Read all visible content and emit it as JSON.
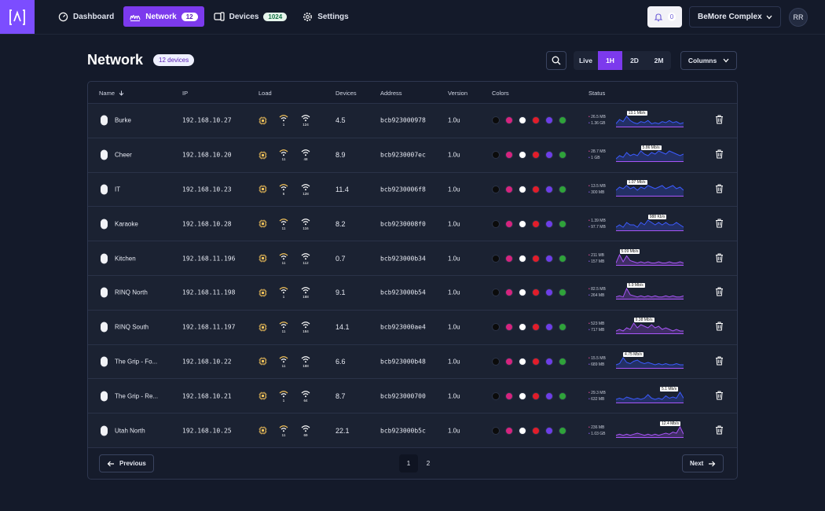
{
  "topbar": {
    "nav": [
      {
        "label": "Dashboard",
        "icon": "gauge-icon"
      },
      {
        "label": "Network",
        "icon": "wave-icon",
        "badge": "12",
        "active": true
      },
      {
        "label": "Devices",
        "icon": "devices-icon",
        "badge": "1024"
      },
      {
        "label": "Settings",
        "icon": "gear-icon"
      }
    ],
    "notifications": "0",
    "org": "BeMore Complex",
    "avatar": "RR"
  },
  "header": {
    "title": "Network",
    "count_badge": "12 devices",
    "ranges": [
      "Live",
      "1H",
      "2D",
      "2M"
    ],
    "active_range": "1H",
    "columns_label": "Columns"
  },
  "table": {
    "columns": [
      "Name",
      "IP",
      "Load",
      "Devices",
      "Address",
      "Version",
      "Colors",
      "Status"
    ],
    "dot_colors": [
      "#0b0b0b",
      "#d6237e",
      "#ffffff",
      "#e11d2a",
      "#6d3ee8",
      "#2fa33a"
    ],
    "rows": [
      {
        "name": "Burke",
        "ip": "192.168.10.27",
        "w1": "1",
        "w2": "124",
        "devices": "4.5",
        "address": "bcb923000978",
        "version": "1.0u",
        "up": "26.5 MB",
        "down": "1.36 GB",
        "rate": "13.1 Mb/s",
        "spark": [
          2,
          6,
          4,
          9,
          5,
          3,
          2,
          4,
          3,
          5,
          2,
          3,
          2,
          4,
          3,
          5,
          3,
          4,
          2,
          3
        ]
      },
      {
        "name": "Cheer",
        "ip": "192.168.10.20",
        "w1": "11",
        "w2": "48",
        "devices": "8.9",
        "address": "bcb9230007ec",
        "version": "1.0u",
        "up": "28.7 MB",
        "down": "1 GB",
        "rate": "5.86 Mb/s",
        "spark": [
          1,
          3,
          2,
          5,
          3,
          4,
          3,
          6,
          4,
          3,
          5,
          4,
          6,
          5,
          4,
          6,
          5,
          4,
          3,
          4
        ]
      },
      {
        "name": "IT",
        "ip": "192.168.10.23",
        "w1": "6",
        "w2": "128",
        "devices": "11.4",
        "address": "bcb9230006f8",
        "version": "1.0u",
        "up": "13.5 MB",
        "down": "300 MB",
        "rate": "1.07 Mb/s",
        "spark": [
          3,
          5,
          4,
          6,
          4,
          5,
          3,
          5,
          4,
          6,
          5,
          4,
          5,
          6,
          4,
          5,
          6,
          4,
          5,
          3
        ]
      },
      {
        "name": "Karaoke",
        "ip": "192.168.10.28",
        "w1": "11",
        "w2": "116",
        "devices": "8.2",
        "address": "bcb9230008f0",
        "version": "1.0u",
        "up": "1.39 MB",
        "down": "97.7 MB",
        "rate": "988 Kb/s",
        "spark": [
          1,
          2,
          1,
          3,
          2,
          2,
          1,
          3,
          2,
          4,
          3,
          2,
          3,
          2,
          3,
          2,
          2,
          3,
          2,
          1
        ]
      },
      {
        "name": "Kitchen",
        "ip": "192.168.11.196",
        "w1": "11",
        "w2": "112",
        "devices": "0.7",
        "address": "bcb923000b34",
        "version": "1.0u",
        "up": "211 MB",
        "down": "157 MB",
        "rate": "5.09 Mb/s",
        "spark": [
          1,
          8,
          2,
          7,
          3,
          2,
          1,
          2,
          1,
          2,
          1,
          1,
          2,
          1,
          1,
          2,
          1,
          1,
          2,
          1
        ]
      },
      {
        "name": "RINQ North",
        "ip": "192.168.11.198",
        "w1": "1",
        "w2": "188",
        "devices": "9.1",
        "address": "bcb923000b54",
        "version": "1.0u",
        "up": "82.5 MB",
        "down": "264 MB",
        "rate": "5.9 Mb/s",
        "spark": [
          1,
          2,
          1,
          9,
          3,
          2,
          1,
          2,
          1,
          2,
          1,
          2,
          1,
          1,
          2,
          1,
          2,
          1,
          1,
          2
        ]
      },
      {
        "name": "RINQ South",
        "ip": "192.168.11.197",
        "w1": "11",
        "w2": "184",
        "devices": "14.1",
        "address": "bcb923000ae4",
        "version": "1.0u",
        "up": "523 MB",
        "down": "717 MB",
        "rate": "9.38 Mb/s",
        "spark": [
          1,
          2,
          1,
          3,
          2,
          6,
          3,
          5,
          4,
          3,
          5,
          3,
          4,
          2,
          3,
          2,
          1,
          2,
          1,
          1
        ]
      },
      {
        "name": "The Grip - Fo...",
        "ip": "192.168.10.22",
        "w1": "11",
        "w2": "188",
        "devices": "6.6",
        "address": "bcb923000b48",
        "version": "1.0u",
        "up": "15.5 MB",
        "down": "689 MB",
        "rate": "4.75 Mb/s",
        "spark": [
          2,
          3,
          8,
          4,
          3,
          5,
          6,
          4,
          3,
          4,
          3,
          2,
          3,
          2,
          3,
          2,
          2,
          3,
          2,
          2
        ]
      },
      {
        "name": "The Grip - Re...",
        "ip": "192.168.10.21",
        "w1": "1",
        "w2": "64",
        "devices": "8.7",
        "address": "bcb923000700",
        "version": "1.0u",
        "up": "29.3 MB",
        "down": "632 MB",
        "rate": "5.1 Mb/s",
        "spark": [
          2,
          3,
          2,
          4,
          3,
          2,
          3,
          2,
          3,
          6,
          3,
          2,
          3,
          2,
          5,
          3,
          4,
          3,
          8,
          3
        ]
      },
      {
        "name": "Utah North",
        "ip": "192.168.10.25",
        "w1": "11",
        "w2": "69",
        "devices": "22.1",
        "address": "bcb923000b5c",
        "version": "1.0u",
        "up": "236 MB",
        "down": "1.03 GB",
        "rate": "12.4 Mb/s",
        "spark": [
          1,
          2,
          1,
          2,
          1,
          2,
          3,
          2,
          1,
          2,
          1,
          2,
          1,
          2,
          3,
          2,
          4,
          3,
          9,
          2
        ]
      }
    ]
  },
  "pagination": {
    "prev": "Previous",
    "next": "Next",
    "pages": [
      "1",
      "2"
    ],
    "current": "1"
  },
  "colors": {
    "accent": "#7c3aed",
    "spark_blue": "#3b5bff",
    "spark_purple": "#a855f7",
    "icon_gold": "#f4c35a"
  }
}
